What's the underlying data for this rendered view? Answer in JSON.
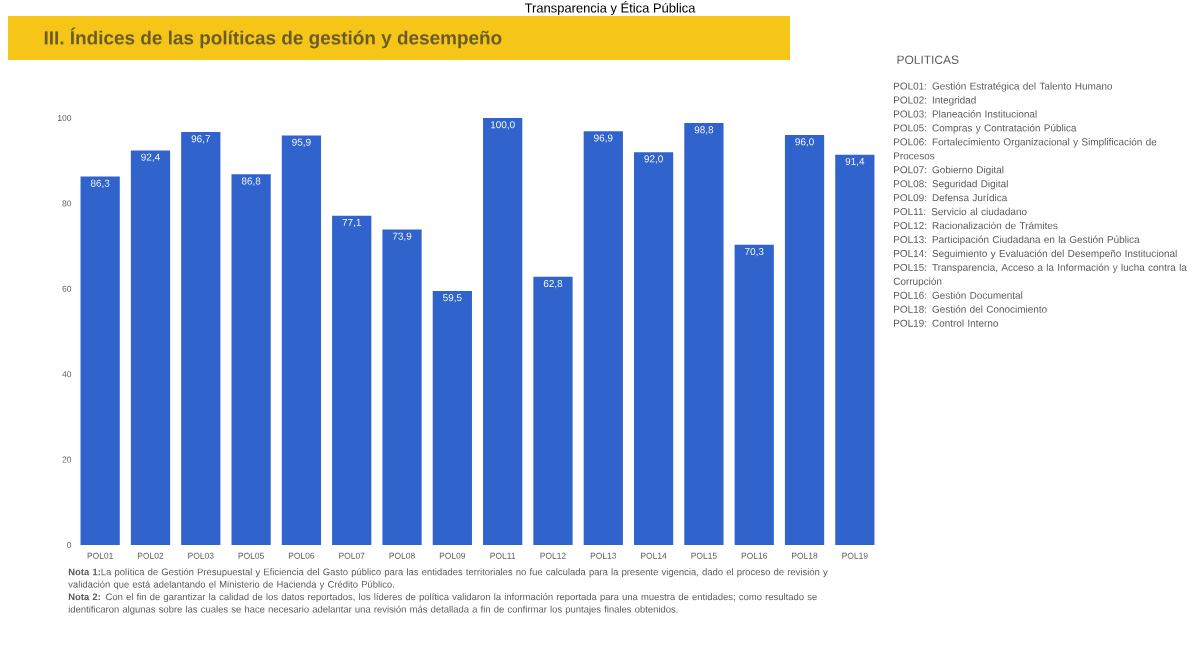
{
  "chart_data": {
    "type": "bar",
    "title": "III. Índices de las políticas de gestión y desempeño",
    "subtitle": "Transparencia y Ética Pública",
    "categories": [
      "POL01",
      "POL02",
      "POL03",
      "POL05",
      "POL06",
      "POL07",
      "POL08",
      "POL09",
      "POL11",
      "POL12",
      "POL13",
      "POL14",
      "POL15",
      "POL16",
      "POL18",
      "POL19"
    ],
    "values": [
      86.3,
      92.4,
      96.7,
      86.8,
      95.9,
      77.1,
      73.9,
      59.5,
      100.0,
      62.8,
      96.9,
      92.0,
      98.8,
      70.3,
      96.0,
      91.4
    ],
    "value_labels": [
      "86,3",
      "92,4",
      "96,7",
      "86,8",
      "95,9",
      "77,1",
      "73,9",
      "59,5",
      "100,0",
      "62,8",
      "96,9",
      "92,0",
      "98,8",
      "70,3",
      "96,0",
      "91,4"
    ],
    "color": "#3063cc",
    "ylim": [
      0,
      100
    ],
    "yticks": [
      0,
      20,
      40,
      60,
      80,
      100
    ],
    "annotations": [
      "POLITICAS",
      "POL01: Gestión Estratégica del Talento Humano",
      "POL02: Integridad",
      "POL03: Planeación Institucional",
      "POL05: Compras y Contratación Pública",
      "POL06: Fortalecimiento Organizacional y Simplificación de Procesos",
      "POL07: Gobierno Digital",
      "POL08: Seguridad Digital",
      "POL09: Defensa Jurídica",
      "POL11: Servicio al ciudadano",
      "POL12: Racionalización de Trámites",
      "POL13: Participación Ciudadana en la Gestión Pública",
      "POL14: Seguimiento y Evaluación del Desempeño Institucional",
      "POL15: Transparencia, Acceso a la Información y lucha contra la Corrupción",
      "POL16: Gestión Documental",
      "POL18: Gestión del Conocimiento",
      "POL19: Control Interno",
      "**Nota 1:**La política de Gestión Presupuestal y Eficiencia del Gasto público para las entidades territoriales no fue calculada para la presente vigencia, dado el proceso de revisión y validación que está adelantando el Ministerio de Hacienda y Crédito Público.",
      "**Nota 2:** Con el fin de garantizar la calidad de los datos reportados, los líderes de política validaron la información reportada para una muestra de entidades; como resultado se identificaron algunas sobre las cuales se hace necesario adelantar una revisión más detallada a fin de confirmar los puntajes finales obtenidos."
    ]
  }
}
